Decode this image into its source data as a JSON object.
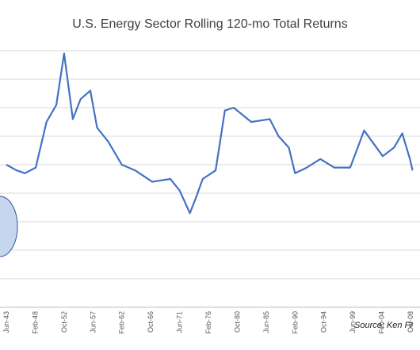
{
  "chart_data": {
    "type": "line",
    "title": "U.S. Energy Sector Rolling 120-mo Total Returns",
    "source": "Source:  Ken Fr",
    "line_color": "#4472c4",
    "highlight_color": "#c5d6ee",
    "grid": true,
    "x_tick_labels": [
      "Jun-43",
      "Feb-48",
      "Oct-52",
      "Jun-57",
      "Feb-62",
      "Oct-66",
      "Jun-71",
      "Feb-76",
      "Oct-80",
      "Jun-85",
      "Feb-90",
      "Oct-94",
      "Jun-99",
      "Feb-04",
      "Oct-08"
    ],
    "x": [
      "Jun-43",
      "Feb-45",
      "Jun-46",
      "Mar-48",
      "Dec-49",
      "Jul-51",
      "Oct-52",
      "Mar-54",
      "Jun-55",
      "Jan-57",
      "Feb-58",
      "Dec-59",
      "Feb-62",
      "Apr-64",
      "Jan-67",
      "Dec-69",
      "Jun-71",
      "Feb-73",
      "Jan-74",
      "Mar-75",
      "Apr-77",
      "Oct-78",
      "Mar-80",
      "Jan-83",
      "Jan-86",
      "Jun-87",
      "Feb-89",
      "Feb-90",
      "Jan-92",
      "Mar-94",
      "Jun-96",
      "Jan-99",
      "Apr-01",
      "Apr-04",
      "Feb-06",
      "Jun-07",
      "Sep-08",
      "Feb-09"
    ],
    "series": [
      {
        "values": [
          7.0,
          6.8,
          6.7,
          6.9,
          8.5,
          9.1,
          10.9,
          8.6,
          9.3,
          9.6,
          8.3,
          7.8,
          7.0,
          6.8,
          6.4,
          6.5,
          6.1,
          5.3,
          5.8,
          6.5,
          6.8,
          8.9,
          9.0,
          8.5,
          8.6,
          8.0,
          7.6,
          6.7,
          6.9,
          7.2,
          6.9,
          6.9,
          8.2,
          7.3,
          7.6,
          8.1,
          7.2,
          6.8
        ]
      }
    ]
  }
}
